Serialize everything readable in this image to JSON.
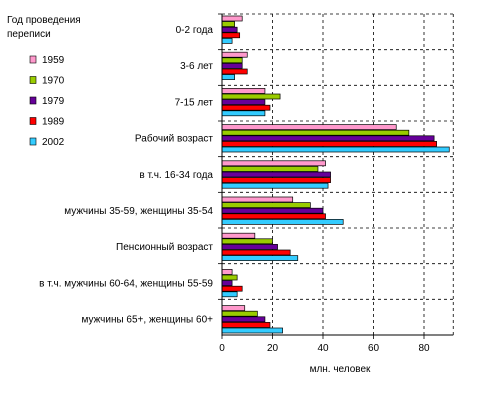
{
  "chart_data": {
    "type": "bar",
    "orientation": "horizontal",
    "legend_title": "Год проведения переписи",
    "xlabel": "млн. человек",
    "xlim": [
      0,
      90
    ],
    "xticks": [
      0,
      20,
      40,
      60,
      80
    ],
    "grid": "dashed",
    "legend_position": "left",
    "categories": [
      "0-2 года",
      "3-6 лет",
      "7-15 лет",
      "Рабочий возраст",
      "в т.ч. 16-34 года",
      "мужчины 35-59, женщины 35-54",
      "Пенсионный возраст",
      "в т.ч. мужчины 60-64, женщины 55-59",
      "мужчины 65+, женщины 60+"
    ],
    "series": [
      {
        "name": "1959",
        "color": "#ff99cc",
        "values": [
          8,
          10,
          17,
          69,
          41,
          28,
          13,
          4,
          9
        ]
      },
      {
        "name": "1970",
        "color": "#99cc00",
        "values": [
          5,
          8,
          23,
          74,
          38,
          35,
          20,
          6,
          14
        ]
      },
      {
        "name": "1979",
        "color": "#660099",
        "values": [
          6,
          8,
          17,
          84,
          43,
          40,
          22,
          4,
          17
        ]
      },
      {
        "name": "1989",
        "color": "#ff0000",
        "values": [
          7,
          10,
          19,
          85,
          43,
          41,
          27,
          8,
          19
        ]
      },
      {
        "name": "2002",
        "color": "#33ccff",
        "values": [
          4,
          5,
          17,
          90,
          42,
          48,
          30,
          6,
          24
        ]
      }
    ]
  }
}
